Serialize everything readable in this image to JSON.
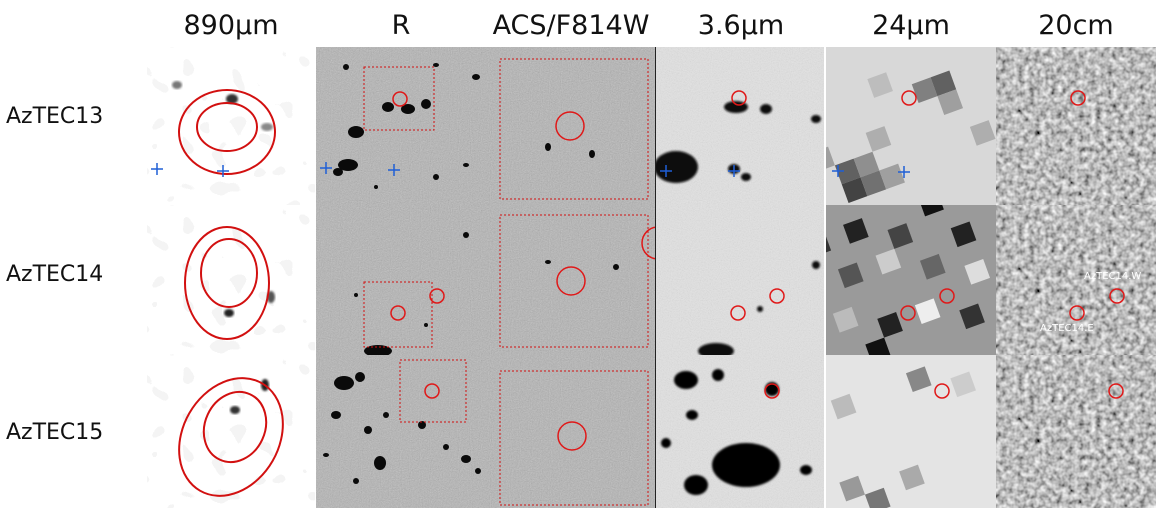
{
  "columns": [
    {
      "id": "submm",
      "title": "890μm"
    },
    {
      "id": "r",
      "title": "R"
    },
    {
      "id": "acs",
      "title": "ACS/F814W"
    },
    {
      "id": "irac",
      "title": "3.6μm"
    },
    {
      "id": "mips",
      "title": "24μm"
    },
    {
      "id": "radio",
      "title": "20cm"
    }
  ],
  "rows": [
    {
      "id": "azt13",
      "label": "AzTEC13"
    },
    {
      "id": "azt14",
      "label": "AzTEC14"
    },
    {
      "id": "azt15",
      "label": "AzTEC15"
    }
  ],
  "annotations": {
    "azt14_w": "AzTEC14.W",
    "azt14_e": "AzTEC14.E"
  },
  "colors": {
    "contour": "#d21010",
    "marker": "#1f5fd6",
    "circle": "#e01818"
  }
}
